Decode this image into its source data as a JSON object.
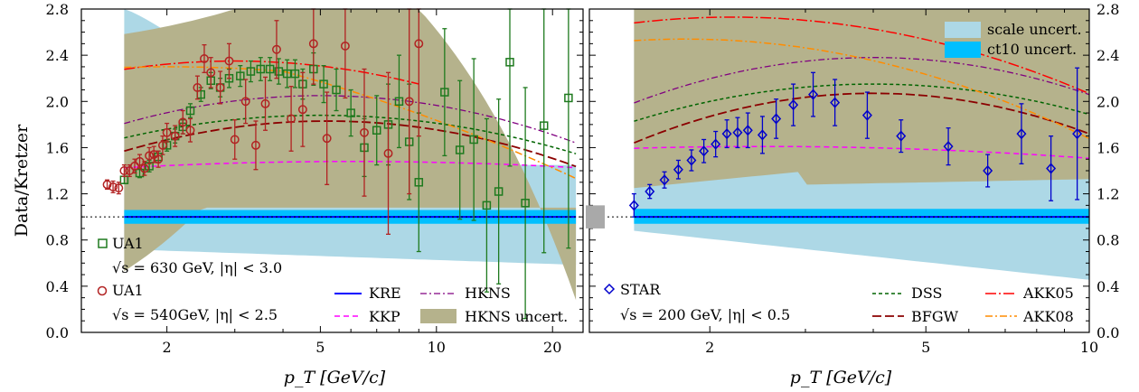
{
  "figure": {
    "ylabel": "Data/Kretzer",
    "xlabel_left": "p_T [GeV/c]",
    "xlabel_right": "p_T [GeV/c]"
  },
  "colors": {
    "scale_band": "#add8e6",
    "ct10_band": "#00bfff",
    "hkns_band": "#b5b28c",
    "ua1_630": "#1e7a1e",
    "ua1_540": "#b22222",
    "star": "#0000cc",
    "kre": "#0000ff",
    "kkp": "#ff00ff",
    "hkns": "#800080",
    "dss": "#006400",
    "bfgw": "#8b0000",
    "akk05": "#ff0000",
    "akk08": "#ff8c00"
  },
  "legend_left": {
    "ua1_630_label": "UA1",
    "ua1_630_cond": "√s = 630 GeV, |η| < 3.0",
    "ua1_540_label": "UA1",
    "ua1_540_cond": "√s = 540GeV, |η| < 2.5",
    "kre": "KRE",
    "kkp": "KKP",
    "hkns": "HKNS",
    "hkns_unc": "HKNS uncert."
  },
  "legend_right": {
    "star_label": "STAR",
    "star_cond": "√s = 200 GeV, |η| < 0.5",
    "dss": "DSS",
    "bfgw": "BFGW",
    "akk05": "AKK05",
    "akk08": "AKK08",
    "scale_unc": "scale uncert.",
    "ct10_unc": "ct10 uncert."
  },
  "chart_data": [
    {
      "type": "scatter",
      "panel": "left",
      "xlabel": "p_T [GeV/c]",
      "ylabel": "Data/Kretzer",
      "xscale": "log",
      "xlim": [
        1.2,
        24
      ],
      "ylim": [
        0,
        2.8
      ],
      "x_ticks": [
        2,
        5,
        10,
        20
      ],
      "y_ticks": [
        0.0,
        0.4,
        0.8,
        1.2,
        1.6,
        2.0,
        2.4,
        2.8
      ],
      "reference_line": 1.0,
      "series": [
        {
          "name": "UA1 √s = 630 GeV, |η| < 3.0",
          "marker": "square",
          "points": [
            [
              1.55,
              1.32,
              0.03
            ],
            [
              1.7,
              1.38,
              0.04
            ],
            [
              1.8,
              1.44,
              0.05
            ],
            [
              1.9,
              1.52,
              0.05
            ],
            [
              2.0,
              1.62,
              0.05
            ],
            [
              2.1,
              1.7,
              0.06
            ],
            [
              2.2,
              1.78,
              0.06
            ],
            [
              2.3,
              1.92,
              0.06
            ],
            [
              2.45,
              2.06,
              0.06
            ],
            [
              2.6,
              2.18,
              0.07
            ],
            [
              2.75,
              2.12,
              0.08
            ],
            [
              2.9,
              2.2,
              0.08
            ],
            [
              3.1,
              2.22,
              0.09
            ],
            [
              3.3,
              2.26,
              0.09
            ],
            [
              3.5,
              2.28,
              0.1
            ],
            [
              3.7,
              2.28,
              0.1
            ],
            [
              3.9,
              2.26,
              0.11
            ],
            [
              4.1,
              2.24,
              0.12
            ],
            [
              4.3,
              2.24,
              0.12
            ],
            [
              4.5,
              2.15,
              0.13
            ],
            [
              4.8,
              2.28,
              0.14
            ],
            [
              5.1,
              2.15,
              0.16
            ],
            [
              5.5,
              2.1,
              0.18
            ],
            [
              6.0,
              1.9,
              0.2
            ],
            [
              6.5,
              1.6,
              0.25
            ],
            [
              7.0,
              1.75,
              0.3
            ],
            [
              7.5,
              1.8,
              0.35
            ],
            [
              8.0,
              2.0,
              0.4
            ],
            [
              8.5,
              1.65,
              0.5
            ],
            [
              9.0,
              1.3,
              0.6
            ],
            [
              10.5,
              2.08,
              0.55
            ],
            [
              11.5,
              1.58,
              0.6
            ],
            [
              12.5,
              1.67,
              0.7
            ],
            [
              13.5,
              1.1,
              0.75
            ],
            [
              14.5,
              1.22,
              0.8
            ],
            [
              15.5,
              2.34,
              0.9
            ],
            [
              17.0,
              1.12,
              1.0
            ],
            [
              19.0,
              1.79,
              1.1
            ],
            [
              22.0,
              2.03,
              1.3
            ]
          ]
        },
        {
          "name": "UA1 √s = 540GeV, |η| < 2.5",
          "marker": "circle",
          "points": [
            [
              1.4,
              1.28,
              0.04
            ],
            [
              1.45,
              1.26,
              0.05
            ],
            [
              1.5,
              1.25,
              0.05
            ],
            [
              1.55,
              1.4,
              0.05
            ],
            [
              1.6,
              1.4,
              0.05
            ],
            [
              1.65,
              1.44,
              0.06
            ],
            [
              1.7,
              1.48,
              0.06
            ],
            [
              1.75,
              1.42,
              0.06
            ],
            [
              1.8,
              1.53,
              0.07
            ],
            [
              1.85,
              1.54,
              0.07
            ],
            [
              1.9,
              1.5,
              0.07
            ],
            [
              1.95,
              1.62,
              0.08
            ],
            [
              2.0,
              1.73,
              0.08
            ],
            [
              2.1,
              1.7,
              0.09
            ],
            [
              2.2,
              1.82,
              0.1
            ],
            [
              2.3,
              1.75,
              0.1
            ],
            [
              2.4,
              2.12,
              0.1
            ],
            [
              2.5,
              2.37,
              0.12
            ],
            [
              2.6,
              2.25,
              0.13
            ],
            [
              2.75,
              2.12,
              0.14
            ],
            [
              2.9,
              2.35,
              0.15
            ],
            [
              3.0,
              1.67,
              0.17
            ],
            [
              3.2,
              2.0,
              0.19
            ],
            [
              3.4,
              1.62,
              0.21
            ],
            [
              3.6,
              1.98,
              0.23
            ],
            [
              3.85,
              2.45,
              0.25
            ],
            [
              4.2,
              1.85,
              0.28
            ],
            [
              4.5,
              1.93,
              0.32
            ],
            [
              4.8,
              2.5,
              0.35
            ],
            [
              5.2,
              1.68,
              0.4
            ],
            [
              5.8,
              2.48,
              0.45
            ],
            [
              6.5,
              1.73,
              0.55
            ],
            [
              7.5,
              1.55,
              0.7
            ],
            [
              8.5,
              2.0,
              0.8
            ],
            [
              9.0,
              2.5,
              0.8
            ]
          ]
        }
      ]
    },
    {
      "type": "scatter",
      "panel": "right",
      "xlabel": "p_T [GeV/c]",
      "ylabel": "Data/Kretzer",
      "xscale": "log",
      "xlim": [
        1.2,
        10
      ],
      "ylim": [
        0,
        2.8
      ],
      "x_ticks": [
        2,
        5,
        10
      ],
      "y_ticks": [
        0.0,
        0.4,
        0.8,
        1.2,
        1.6,
        2.0,
        2.4,
        2.8
      ],
      "reference_line": 1.0,
      "series": [
        {
          "name": "STAR √s = 200 GeV, |η| < 0.5",
          "marker": "diamond",
          "points": [
            [
              1.45,
              1.1,
              0.1
            ],
            [
              1.55,
              1.22,
              0.06
            ],
            [
              1.65,
              1.32,
              0.07
            ],
            [
              1.75,
              1.41,
              0.08
            ],
            [
              1.85,
              1.49,
              0.09
            ],
            [
              1.95,
              1.57,
              0.1
            ],
            [
              2.05,
              1.63,
              0.11
            ],
            [
              2.15,
              1.72,
              0.12
            ],
            [
              2.25,
              1.73,
              0.13
            ],
            [
              2.35,
              1.75,
              0.15
            ],
            [
              2.5,
              1.71,
              0.16
            ],
            [
              2.65,
              1.85,
              0.17
            ],
            [
              2.85,
              1.97,
              0.18
            ],
            [
              3.1,
              2.06,
              0.19
            ],
            [
              3.4,
              1.99,
              0.2
            ],
            [
              3.9,
              1.88,
              0.2
            ],
            [
              4.5,
              1.7,
              0.14
            ],
            [
              5.5,
              1.61,
              0.16
            ],
            [
              6.5,
              1.4,
              0.14
            ],
            [
              7.5,
              1.72,
              0.26
            ],
            [
              8.5,
              1.42,
              0.28
            ],
            [
              9.5,
              1.72,
              0.57
            ]
          ]
        }
      ]
    }
  ]
}
